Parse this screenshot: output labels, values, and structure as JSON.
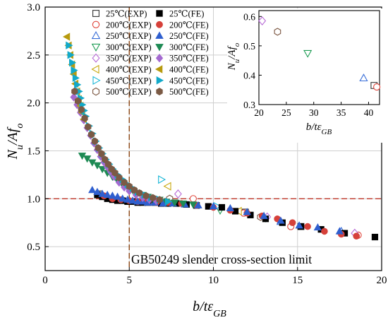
{
  "chart_data": [
    {
      "type": "scatter",
      "xlabel": {
        "base": "b/tε",
        "sub": "GB"
      },
      "ylabel": {
        "base": "N",
        "sub1": "u",
        "mid": "/Af",
        "sub2": "o"
      },
      "xlim": [
        0,
        20
      ],
      "ylim": [
        0.25,
        3.0
      ],
      "xticks": [
        0,
        5,
        10,
        15,
        20
      ],
      "yticks": [
        0.5,
        1.0,
        1.5,
        2.0,
        2.5,
        3.0
      ],
      "xtick_labels": [
        "0",
        "5",
        "10",
        "15",
        "20"
      ],
      "ytick_labels": [
        "0.5",
        "1.0",
        "1.5",
        "2.0",
        "2.5",
        "3.0"
      ],
      "grid": true,
      "legend_position": "top-left",
      "reference_lines": [
        {
          "axis": "y",
          "value": 1.0,
          "color": "#c0392b",
          "style": "dashed"
        },
        {
          "axis": "x",
          "value": 5,
          "color": "#8b4513",
          "style": "dashed"
        }
      ],
      "annotation": "GB50249 slender cross-section limit",
      "series": [
        {
          "name": "25℃(EXP)",
          "marker": "square",
          "filled": false,
          "color": "#333333",
          "x": [
            3.2,
            11.9,
            15.2
          ],
          "y": [
            1.05,
            0.86,
            0.71
          ]
        },
        {
          "name": "200℃(EXP)",
          "marker": "circle",
          "filled": false,
          "color": "#e0443a",
          "x": [
            8.8,
            11.8,
            14.6,
            18.6
          ],
          "y": [
            1.0,
            0.85,
            0.71,
            0.62
          ]
        },
        {
          "name": "250℃(EXP)",
          "marker": "triangle-up",
          "filled": false,
          "color": "#3a6fd8",
          "x": [
            14.0,
            17.6
          ],
          "y": [
            0.76,
            0.66
          ]
        },
        {
          "name": "300℃(EXP)",
          "marker": "triangle-down",
          "filled": false,
          "color": "#1f9d55",
          "x": [
            10.4,
            13.1
          ],
          "y": [
            0.88,
            0.8
          ]
        },
        {
          "name": "350℃(EXP)",
          "marker": "diamond",
          "filled": false,
          "color": "#b86bd6",
          "x": [
            7.9,
            13.2,
            18.4
          ],
          "y": [
            1.05,
            0.81,
            0.64
          ]
        },
        {
          "name": "400℃(EXP)",
          "marker": "triangle-left",
          "filled": false,
          "color": "#c8a80e",
          "x": [
            7.3,
            11.5
          ],
          "y": [
            1.13,
            0.87
          ]
        },
        {
          "name": "450℃(EXP)",
          "marker": "triangle-right",
          "filled": false,
          "color": "#17b6d6",
          "x": [
            6.9,
            10.2
          ],
          "y": [
            1.2,
            0.92
          ]
        },
        {
          "name": "500℃(EXP)",
          "marker": "hexagon",
          "filled": false,
          "color": "#7a5540",
          "x": [
            7.4,
            12.8
          ],
          "y": [
            1.0,
            0.81
          ]
        },
        {
          "name": "25℃(FE)",
          "marker": "square",
          "filled": true,
          "color": "#000000",
          "x": [
            3.1,
            3.4,
            3.7,
            4.0,
            4.3,
            4.6,
            4.9,
            5.2,
            5.5,
            5.8,
            6.1,
            6.5,
            6.9,
            7.3,
            7.8,
            8.4,
            9.0,
            9.7,
            10.5,
            11.3,
            12.2,
            13.1,
            14.1,
            15.2,
            16.4,
            17.8,
            19.6
          ],
          "y": [
            1.04,
            1.02,
            1.0,
            0.99,
            0.98,
            0.98,
            0.97,
            0.97,
            0.96,
            0.96,
            0.96,
            0.96,
            0.95,
            0.95,
            0.95,
            0.94,
            0.93,
            0.92,
            0.91,
            0.87,
            0.83,
            0.79,
            0.75,
            0.71,
            0.68,
            0.64,
            0.6
          ]
        },
        {
          "name": "200℃(FE)",
          "marker": "circle",
          "filled": true,
          "color": "#d6413a",
          "x": [
            3.5,
            4.0,
            4.5,
            5.0,
            5.5,
            6.0,
            6.6,
            7.3,
            8.1,
            9.0,
            10.0,
            11.0,
            12.0,
            12.9,
            13.8,
            14.7,
            15.6,
            16.6,
            17.6,
            18.5
          ],
          "y": [
            1.03,
            1.0,
            0.99,
            0.98,
            0.97,
            0.97,
            0.96,
            0.96,
            0.95,
            0.93,
            0.91,
            0.88,
            0.85,
            0.82,
            0.79,
            0.75,
            0.71,
            0.66,
            0.63,
            0.61
          ]
        },
        {
          "name": "250℃(FE)",
          "marker": "triangle-up",
          "filled": true,
          "color": "#2f5fcf",
          "x": [
            2.8,
            3.1,
            3.4,
            3.7,
            4.0,
            4.3,
            4.6,
            4.9,
            5.2,
            5.5,
            5.8,
            6.1,
            6.5,
            7.0,
            7.6,
            8.3,
            9.1,
            10.0,
            11.0,
            12.0,
            13.0,
            14.0,
            15.1,
            16.2,
            17.5
          ],
          "y": [
            1.09,
            1.07,
            1.05,
            1.04,
            1.03,
            1.02,
            1.0,
            0.99,
            0.98,
            0.97,
            0.97,
            0.96,
            0.96,
            0.95,
            0.95,
            0.94,
            0.93,
            0.92,
            0.9,
            0.86,
            0.82,
            0.77,
            0.72,
            0.7,
            0.66
          ]
        },
        {
          "name": "300℃(FE)",
          "marker": "triangle-down",
          "filled": true,
          "color": "#1e8a54",
          "x": [
            2.2,
            2.5,
            2.8,
            3.1,
            3.4,
            3.7,
            4.0,
            4.3,
            4.6,
            4.9,
            5.2,
            5.5,
            5.8,
            6.1,
            6.4,
            6.8,
            7.2,
            7.7,
            8.2,
            8.8
          ],
          "y": [
            1.45,
            1.42,
            1.38,
            1.35,
            1.31,
            1.27,
            1.23,
            1.19,
            1.15,
            1.12,
            1.09,
            1.06,
            1.04,
            1.02,
            1.0,
            0.99,
            0.97,
            0.96,
            0.95,
            0.94
          ]
        },
        {
          "name": "350℃(FE)",
          "marker": "diamond",
          "filled": true,
          "color": "#a46ad0",
          "x": [
            1.7,
            1.9,
            2.1,
            2.3,
            2.5,
            2.7,
            2.9,
            3.1,
            3.3,
            3.5,
            3.7,
            3.9,
            4.1,
            4.4,
            4.7,
            5.0,
            5.4,
            5.8,
            6.2,
            6.6
          ],
          "y": [
            2.06,
            1.98,
            1.9,
            1.82,
            1.74,
            1.66,
            1.58,
            1.51,
            1.44,
            1.38,
            1.33,
            1.28,
            1.23,
            1.17,
            1.12,
            1.08,
            1.04,
            1.01,
            0.99,
            0.98
          ]
        },
        {
          "name": "400℃(FE)",
          "marker": "triangle-left",
          "filled": true,
          "color": "#b79a0e",
          "x": [
            1.3,
            1.4,
            1.5,
            1.6,
            1.7,
            1.8,
            1.9,
            2.0,
            2.1,
            2.2,
            2.3
          ],
          "y": [
            2.69,
            2.6,
            2.5,
            2.4,
            2.3,
            2.2,
            2.12,
            2.04,
            1.97,
            1.9,
            1.83
          ]
        },
        {
          "name": "450℃(FE)",
          "marker": "triangle-right",
          "filled": true,
          "color": "#12a9c9",
          "x": [
            1.4,
            1.5,
            1.6,
            1.7,
            1.8,
            1.9,
            2.0,
            2.1,
            2.2,
            2.3,
            2.4,
            2.6,
            2.8,
            3.0,
            3.2,
            3.4,
            3.6,
            3.8,
            4.0,
            4.3,
            4.6,
            4.9,
            5.2,
            5.5,
            5.9,
            6.3,
            6.8,
            7.3
          ],
          "y": [
            2.6,
            2.5,
            2.42,
            2.34,
            2.26,
            2.19,
            2.12,
            2.05,
            1.98,
            1.92,
            1.86,
            1.76,
            1.68,
            1.6,
            1.53,
            1.47,
            1.41,
            1.36,
            1.31,
            1.25,
            1.2,
            1.15,
            1.11,
            1.07,
            1.04,
            1.01,
            0.99,
            0.97
          ]
        },
        {
          "name": "500℃(FE)",
          "marker": "hexagon",
          "filled": true,
          "color": "#7b5a45",
          "x": [
            1.75,
            1.95,
            2.15,
            2.35,
            2.55,
            2.75,
            2.95,
            3.15,
            3.35,
            3.55,
            3.75,
            3.95,
            4.15,
            4.4,
            4.7,
            5.0,
            5.3,
            5.6,
            6.0,
            6.4,
            6.8
          ],
          "y": [
            2.12,
            2.02,
            1.93,
            1.84,
            1.75,
            1.67,
            1.6,
            1.53,
            1.47,
            1.41,
            1.36,
            1.31,
            1.27,
            1.22,
            1.17,
            1.13,
            1.09,
            1.06,
            1.03,
            1.01,
            0.99
          ]
        }
      ]
    },
    {
      "type": "scatter",
      "inset": true,
      "xlabel": {
        "base": "b/tε",
        "sub": "GB"
      },
      "ylabel": {
        "base": "N",
        "sub1": "u",
        "mid": "/Af",
        "sub2": "o"
      },
      "xlim": [
        20,
        42
      ],
      "ylim": [
        0.3,
        0.62
      ],
      "xticks": [
        20,
        25,
        30,
        35,
        40
      ],
      "yticks": [
        0.3,
        0.4,
        0.5,
        0.6
      ],
      "xtick_labels": [
        "20",
        "25",
        "30",
        "35",
        "40"
      ],
      "ytick_labels": [
        "0.3",
        "0.4",
        "0.5",
        "0.6"
      ],
      "grid": false,
      "series": [
        {
          "name": "350℃(EXP)",
          "marker": "diamond",
          "filled": false,
          "color": "#b86bd6",
          "x": [
            20.6
          ],
          "y": [
            0.585
          ]
        },
        {
          "name": "500℃(EXP)",
          "marker": "hexagon",
          "filled": false,
          "color": "#7a5540",
          "x": [
            23.4
          ],
          "y": [
            0.548
          ]
        },
        {
          "name": "300℃(EXP)",
          "marker": "triangle-down",
          "filled": false,
          "color": "#1f9d55",
          "x": [
            28.9
          ],
          "y": [
            0.475
          ]
        },
        {
          "name": "250℃(EXP)",
          "marker": "triangle-up",
          "filled": false,
          "color": "#3a6fd8",
          "x": [
            39.1
          ],
          "y": [
            0.39
          ]
        },
        {
          "name": "25℃(EXP)",
          "marker": "square",
          "filled": false,
          "color": "#333333",
          "x": [
            41.0
          ],
          "y": [
            0.365
          ]
        },
        {
          "name": "200℃(EXP)",
          "marker": "circle",
          "filled": false,
          "color": "#e0443a",
          "x": [
            41.5
          ],
          "y": [
            0.36
          ]
        }
      ]
    }
  ],
  "legend": {
    "columns": [
      [
        "25℃(EXP)",
        "200℃(EXP)",
        "250℃(EXP)",
        "300℃(EXP)",
        "350℃(EXP)",
        "400℃(EXP)",
        "450℃(EXP)",
        "500℃(EXP)"
      ],
      [
        "25℃(FE)",
        "200℃(FE)",
        "250℃(FE)",
        "300℃(FE)",
        "350℃(FE)",
        "400℃(FE)",
        "450℃(FE)",
        "500℃(FE)"
      ]
    ]
  }
}
